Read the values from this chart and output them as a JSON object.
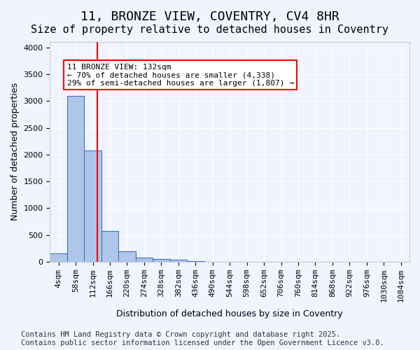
{
  "title": "11, BRONZE VIEW, COVENTRY, CV4 8HR",
  "subtitle": "Size of property relative to detached houses in Coventry",
  "xlabel": "Distribution of detached houses by size in Coventry",
  "ylabel": "Number of detached properties",
  "footer": "Contains HM Land Registry data © Crown copyright and database right 2025.\nContains public sector information licensed under the Open Government Licence v3.0.",
  "bar_categories": [
    "4sqm",
    "58sqm",
    "112sqm",
    "166sqm",
    "220sqm",
    "274sqm",
    "328sqm",
    "382sqm",
    "436sqm",
    "490sqm",
    "544sqm",
    "598sqm",
    "652sqm",
    "706sqm",
    "760sqm",
    "814sqm",
    "868sqm",
    "922sqm",
    "976sqm",
    "1030sqm",
    "1084sqm"
  ],
  "bar_values": [
    150,
    3100,
    2080,
    575,
    200,
    75,
    55,
    40,
    15,
    5,
    0,
    0,
    0,
    0,
    0,
    0,
    0,
    0,
    0,
    0,
    0
  ],
  "bar_color": "#aec6e8",
  "bar_edge_color": "#4472c4",
  "ylim": [
    0,
    4100
  ],
  "yticks": [
    0,
    500,
    1000,
    1500,
    2000,
    2500,
    3000,
    3500,
    4000
  ],
  "vline_x": 2.26,
  "vline_color": "red",
  "annotation_text": "11 BRONZE VIEW: 132sqm\n← 70% of detached houses are smaller (4,338)\n29% of semi-detached houses are larger (1,807) →",
  "annotation_box_color": "red",
  "background_color": "#f0f4ff",
  "grid_color": "white",
  "title_fontsize": 13,
  "subtitle_fontsize": 11,
  "label_fontsize": 9,
  "tick_fontsize": 8,
  "footer_fontsize": 7.5
}
